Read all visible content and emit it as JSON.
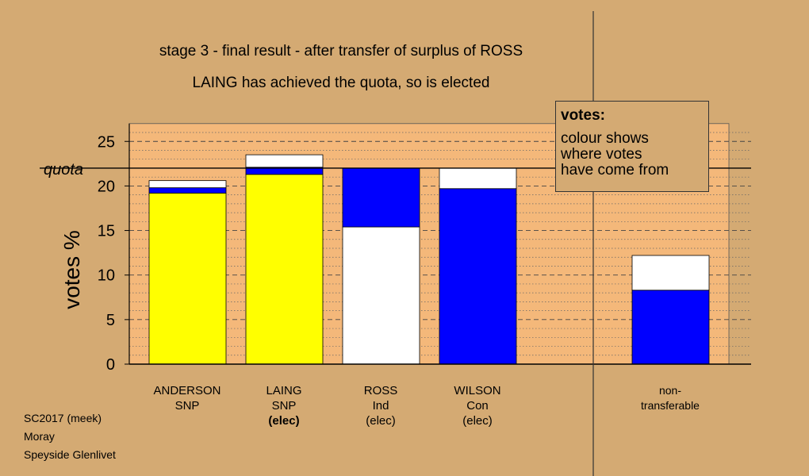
{
  "titles": {
    "line1": "stage 3 - final result - after transfer of surplus of ROSS",
    "line2": "LAING has achieved the quota, so is elected"
  },
  "legend": {
    "heading": "votes:",
    "line1": "colour shows",
    "line2": "where votes",
    "line3": "have come from"
  },
  "footer": {
    "line1": "SC2017 (meek)",
    "line2": "Moray",
    "line3": "Speyside Glenlivet"
  },
  "chart_data": {
    "type": "bar",
    "stacked": true,
    "ylabel": "votes %",
    "ylim": [
      0,
      27
    ],
    "yticks": [
      0,
      5,
      10,
      15,
      20,
      25
    ],
    "quota": 22,
    "quota_label": "quota",
    "colors": {
      "snp": "#ffff00",
      "blue": "#0000ff",
      "white": "#ffffff",
      "plot_bg": "#f4b87a"
    },
    "categories": [
      {
        "name": "ANDERSON",
        "party": "SNP",
        "status": "",
        "segments": [
          {
            "source": "yellow",
            "value": 19.2
          },
          {
            "source": "blue",
            "value": 0.6
          },
          {
            "source": "white",
            "value": 0.8
          }
        ]
      },
      {
        "name": "LAING",
        "party": "SNP",
        "status": "(elec)",
        "segments": [
          {
            "source": "yellow",
            "value": 21.3
          },
          {
            "source": "blue",
            "value": 0.8
          },
          {
            "source": "white",
            "value": 1.4
          }
        ]
      },
      {
        "name": "ROSS",
        "party": "Ind",
        "status": "(elec)",
        "segments": [
          {
            "source": "white",
            "value": 15.4
          },
          {
            "source": "blue",
            "value": 6.6
          }
        ]
      },
      {
        "name": "WILSON",
        "party": "Con",
        "status": "(elec)",
        "segments": [
          {
            "source": "blue",
            "value": 19.7
          },
          {
            "source": "white",
            "value": 2.3
          }
        ]
      },
      {
        "name": "non-",
        "party": "transferable",
        "status": "",
        "segments": [
          {
            "source": "blue",
            "value": 8.3
          },
          {
            "source": "white",
            "value": 3.9
          }
        ]
      }
    ]
  }
}
